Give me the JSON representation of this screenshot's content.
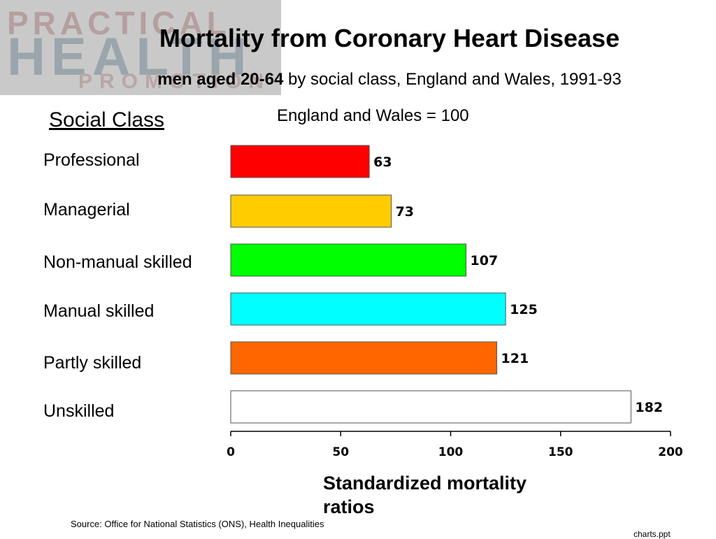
{
  "logo": {
    "line1": "PRACTICAL",
    "line2": "HEALTH",
    "line3": "PROMOTION"
  },
  "header": {
    "title": "Mortality from Coronary Heart Disease",
    "subtitle_bold": "men aged 20-64",
    "subtitle_rest": " by social class, England and Wales, 1991-93",
    "reference_note": "England and Wales = 100",
    "category_header": "Social Class"
  },
  "footer": {
    "source": "Source: Office for National Statistics (ONS), Health Inequalities",
    "filename": "charts.ppt"
  },
  "chart_data": {
    "type": "bar",
    "orientation": "horizontal",
    "categories": [
      "Professional",
      "Managerial",
      "Non-manual skilled",
      "Manual skilled",
      "Partly skilled",
      "Unskilled"
    ],
    "values": [
      63,
      73,
      107,
      125,
      121,
      182
    ],
    "data_labels": [
      "63",
      "73",
      "107",
      "125",
      "121",
      "182"
    ],
    "colors": [
      "#ff0000",
      "#ffcc00",
      "#00ff00",
      "#00ffff",
      "#ff6600",
      "#ffffff"
    ],
    "xlabel": "Standardized mortality ratios",
    "xlim": [
      0,
      200
    ],
    "xticks": [
      0,
      50,
      100,
      150,
      200
    ],
    "grid": false,
    "legend": "none"
  }
}
